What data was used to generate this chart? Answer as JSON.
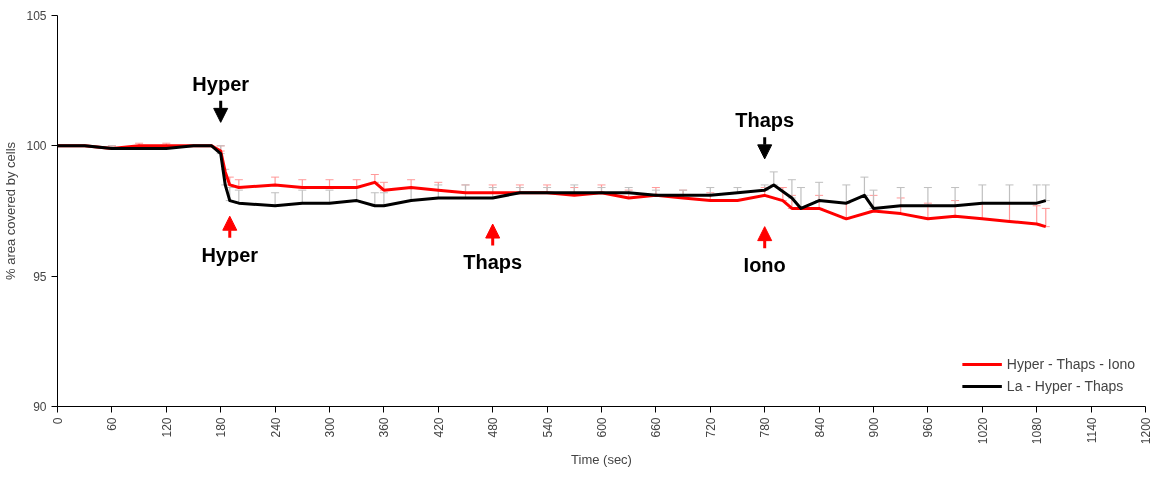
{
  "chart_data": {
    "type": "line",
    "xlabel": "Time (sec)",
    "ylabel": "% area covered by cells",
    "xlim": [
      0,
      1200
    ],
    "xticks": [
      0,
      60,
      120,
      180,
      240,
      300,
      360,
      420,
      480,
      540,
      600,
      660,
      720,
      780,
      840,
      900,
      960,
      1020,
      1080,
      1140,
      1200
    ],
    "ylim": [
      90,
      105
    ],
    "yticks": [
      90,
      95,
      100,
      105
    ],
    "grid": false,
    "legend": "bottom right",
    "marker": "none",
    "line_style": "solid",
    "series": [
      {
        "name": "Hyper - Thaps - Iono",
        "color": "#ff0000",
        "x": [
          0,
          30,
          60,
          90,
          120,
          150,
          170,
          180,
          185,
          190,
          200,
          240,
          270,
          300,
          330,
          350,
          360,
          390,
          420,
          450,
          480,
          510,
          540,
          570,
          600,
          630,
          660,
          690,
          720,
          750,
          780,
          800,
          810,
          840,
          870,
          900,
          930,
          960,
          990,
          1020,
          1050,
          1080,
          1090
        ],
        "values": [
          100,
          100,
          99.9,
          100,
          100,
          100,
          100,
          99.8,
          99.0,
          98.5,
          98.4,
          98.5,
          98.4,
          98.4,
          98.4,
          98.6,
          98.3,
          98.4,
          98.3,
          98.2,
          98.2,
          98.2,
          98.2,
          98.1,
          98.2,
          98.0,
          98.1,
          98.0,
          97.9,
          97.9,
          98.1,
          97.9,
          97.6,
          97.6,
          97.2,
          97.5,
          97.4,
          97.2,
          97.3,
          97.2,
          97.1,
          97.0,
          96.9
        ],
        "errors": [
          null,
          null,
          [
            99.9,
            100.0
          ],
          [
            100,
            100.1
          ],
          [
            100,
            100.1
          ],
          null,
          null,
          [
            99.8,
            100.0
          ],
          null,
          [
            98.5,
            98.8
          ],
          [
            98.4,
            98.7
          ],
          [
            98.5,
            98.8
          ],
          [
            98.4,
            98.7
          ],
          [
            98.4,
            98.7
          ],
          [
            98.4,
            98.7
          ],
          [
            98.6,
            98.9
          ],
          [
            98.3,
            98.6
          ],
          [
            98.4,
            98.7
          ],
          [
            98.3,
            98.6
          ],
          [
            98.2,
            98.5
          ],
          [
            98.2,
            98.5
          ],
          [
            98.2,
            98.5
          ],
          [
            98.2,
            98.5
          ],
          [
            98.1,
            98.4
          ],
          [
            98.2,
            98.5
          ],
          [
            98.0,
            98.3
          ],
          [
            98.1,
            98.4
          ],
          [
            98.0,
            98.3
          ],
          [
            97.9,
            98.2
          ],
          null,
          [
            98.1,
            98.4
          ],
          [
            97.9,
            98.4
          ],
          [
            97.6,
            98.1
          ],
          [
            97.6,
            98.1
          ],
          [
            97.2,
            97.8
          ],
          [
            97.5,
            98.1
          ],
          [
            97.4,
            98.0
          ],
          [
            97.2,
            97.8
          ],
          [
            97.3,
            97.9
          ],
          [
            97.2,
            97.8
          ],
          [
            97.1,
            97.8
          ],
          [
            97.0,
            97.7
          ],
          [
            96.9,
            97.6
          ]
        ]
      },
      {
        "name": "La - Hyper - Thaps",
        "color": "#000000",
        "x": [
          0,
          30,
          60,
          90,
          120,
          150,
          170,
          180,
          185,
          190,
          200,
          240,
          270,
          300,
          330,
          350,
          360,
          390,
          420,
          450,
          480,
          510,
          540,
          570,
          600,
          630,
          660,
          690,
          720,
          750,
          780,
          790,
          810,
          820,
          840,
          870,
          890,
          900,
          930,
          960,
          990,
          1020,
          1050,
          1080,
          1090
        ],
        "values": [
          100,
          100,
          99.9,
          99.9,
          99.9,
          100,
          100,
          99.7,
          98.5,
          97.9,
          97.8,
          97.7,
          97.8,
          97.8,
          97.9,
          97.7,
          97.7,
          97.9,
          98.0,
          98.0,
          98.0,
          98.2,
          98.2,
          98.2,
          98.2,
          98.2,
          98.1,
          98.1,
          98.1,
          98.2,
          98.3,
          98.5,
          98.0,
          97.6,
          97.9,
          97.8,
          98.1,
          97.6,
          97.7,
          97.7,
          97.7,
          97.8,
          97.8,
          97.8,
          97.9
        ],
        "errors": [
          null,
          null,
          [
            99.9,
            100.0
          ],
          [
            99.9,
            100.0
          ],
          [
            99.9,
            100.0
          ],
          null,
          null,
          [
            99.7,
            100.0
          ],
          [
            98.5,
            99.1
          ],
          [
            97.9,
            98.4
          ],
          [
            97.8,
            98.3
          ],
          [
            97.7,
            98.2
          ],
          [
            97.8,
            98.3
          ],
          [
            97.8,
            98.3
          ],
          [
            97.9,
            98.4
          ],
          [
            97.7,
            98.2
          ],
          [
            97.7,
            98.2
          ],
          [
            97.9,
            98.4
          ],
          [
            98.0,
            98.5
          ],
          [
            98.0,
            98.5
          ],
          [
            98.0,
            98.4
          ],
          [
            98.2,
            98.4
          ],
          [
            98.2,
            98.4
          ],
          [
            98.2,
            98.5
          ],
          [
            98.2,
            98.4
          ],
          [
            98.2,
            98.4
          ],
          [
            98.1,
            98.3
          ],
          [
            98.1,
            98.3
          ],
          [
            98.1,
            98.4
          ],
          [
            98.2,
            98.4
          ],
          [
            98.3,
            98.5
          ],
          [
            98.5,
            99.0
          ],
          [
            98.0,
            98.7
          ],
          [
            97.6,
            98.4
          ],
          [
            97.9,
            98.6
          ],
          [
            97.8,
            98.5
          ],
          [
            98.1,
            98.8
          ],
          [
            97.6,
            98.3
          ],
          [
            97.7,
            98.4
          ],
          [
            97.7,
            98.4
          ],
          [
            97.7,
            98.4
          ],
          [
            97.8,
            98.5
          ],
          [
            97.8,
            98.5
          ],
          [
            97.8,
            98.5
          ],
          [
            97.9,
            98.5
          ]
        ]
      }
    ],
    "annotations": [
      {
        "text": "Hyper",
        "x": 180,
        "y": 99.7
      },
      {
        "text": "Thaps",
        "x": 780,
        "y": 98.3
      },
      {
        "text": "Hyper",
        "x": 190,
        "y": 98.5
      },
      {
        "text": "Thaps",
        "x": 480,
        "y": 98.2
      },
      {
        "text": "Iono",
        "x": 780,
        "y": 98.1
      }
    ]
  }
}
